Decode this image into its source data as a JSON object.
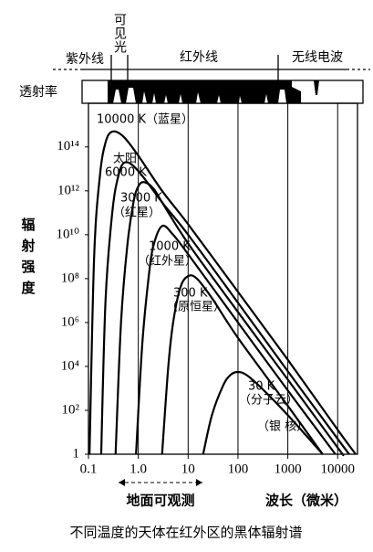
{
  "chart_data": {
    "type": "line",
    "title": "不同温度的天体在红外区的黑体辐射谱",
    "x_label": "波长（微米）",
    "y_label": "辐射强度",
    "visible_label": "可见光",
    "band_labels": [
      "紫外线",
      "红外线",
      "无线电波"
    ],
    "transmission_label": "透射率",
    "ground_observable": "地面可观测",
    "xscale": "log",
    "yscale": "log",
    "xlim": [
      0.1,
      25000
    ],
    "ylim": [
      1,
      5000000000000000.0
    ],
    "xticks": [
      0.1,
      {
        "value": 1,
        "label": "1.0"
      },
      10,
      100,
      1000,
      10000
    ],
    "yticks": [
      1,
      {
        "value": 100,
        "label": "10²"
      },
      {
        "value": 10000,
        "label": "10⁴"
      },
      {
        "value": 1000000.0,
        "label": "10⁶"
      },
      {
        "value": 100000000.0,
        "label": "10⁸"
      },
      {
        "value": 10000000000.0,
        "label": "10¹⁰"
      },
      {
        "value": 1000000000000.0,
        "label": "10¹²"
      },
      {
        "value": 100000000000000.0,
        "label": "10¹⁴"
      }
    ],
    "grid_x": true,
    "series": [
      {
        "name": "10000 K（蓝星）",
        "color": "#000000",
        "x": [
          0.105,
          0.13,
          0.17,
          0.22,
          0.3,
          0.5,
          1,
          3,
          10,
          100,
          1000,
          10000,
          23000
        ],
        "values": [
          1,
          1000000000.0,
          5000000000000.0,
          160000000000000.0,
          500000000000000.0,
          300000000000000.0,
          40000000000000.0,
          1000000000000.0,
          30000000000.0,
          25000000.0,
          20000.0,
          13,
          1
        ]
      },
      {
        "name": "6000 K",
        "color": "#000000",
        "x": [
          0.18,
          0.22,
          0.3,
          0.4,
          0.55,
          1,
          3,
          10,
          100,
          1000,
          10000,
          17000
        ],
        "values": [
          1,
          10000000.0,
          100000000000.0,
          5000000000000.0,
          20000000000000.0,
          8000000000000.0,
          300000000000.0,
          10000000000.0,
          8000000.0,
          6000,
          5,
          1
        ]
      },
      {
        "name": "3000 K",
        "color": "#000000",
        "x": [
          0.35,
          0.45,
          0.6,
          0.8,
          1,
          1.3,
          2,
          3,
          10,
          100,
          1000,
          10000,
          12600
        ],
        "values": [
          1,
          1000000.0,
          3000000000.0,
          300000000000.0,
          1600000000000.0,
          2500000000000.0,
          1300000000000.0,
          300000000000.0,
          4000000000.0,
          3000000.0,
          2500,
          2,
          1
        ]
      },
      {
        "name": "1000 K",
        "color": "#000000",
        "x": [
          0.9,
          1.2,
          1.6,
          2,
          3,
          5,
          10,
          100,
          1000,
          9000
        ],
        "values": [
          1,
          100000.0,
          100000000.0,
          3000000000.0,
          25000000000.0,
          10000000000.0,
          1300000000.0,
          1000000.0,
          800,
          1
        ]
      },
      {
        "name": "300 K",
        "color": "#000000",
        "x": [
          3,
          4,
          5,
          7,
          10,
          15,
          30,
          100,
          1000,
          5000
        ],
        "values": [
          1,
          10000.0,
          1000000.0,
          40000000.0,
          130000000.0,
          100000000.0,
          13000000.0,
          200000.0,
          160,
          1
        ]
      },
      {
        "name": "30 K",
        "color": "#000000",
        "x": [
          20,
          30,
          50,
          70,
          100,
          150,
          300,
          1000,
          5000
        ],
        "values": [
          1,
          60,
          1300,
          4000,
          5600,
          4000,
          1000,
          60,
          1
        ]
      }
    ],
    "annotations": [
      "太阳",
      "（红星）",
      "（红外星）",
      "（原恒星）",
      "（分子云）",
      "（银 核）"
    ]
  }
}
